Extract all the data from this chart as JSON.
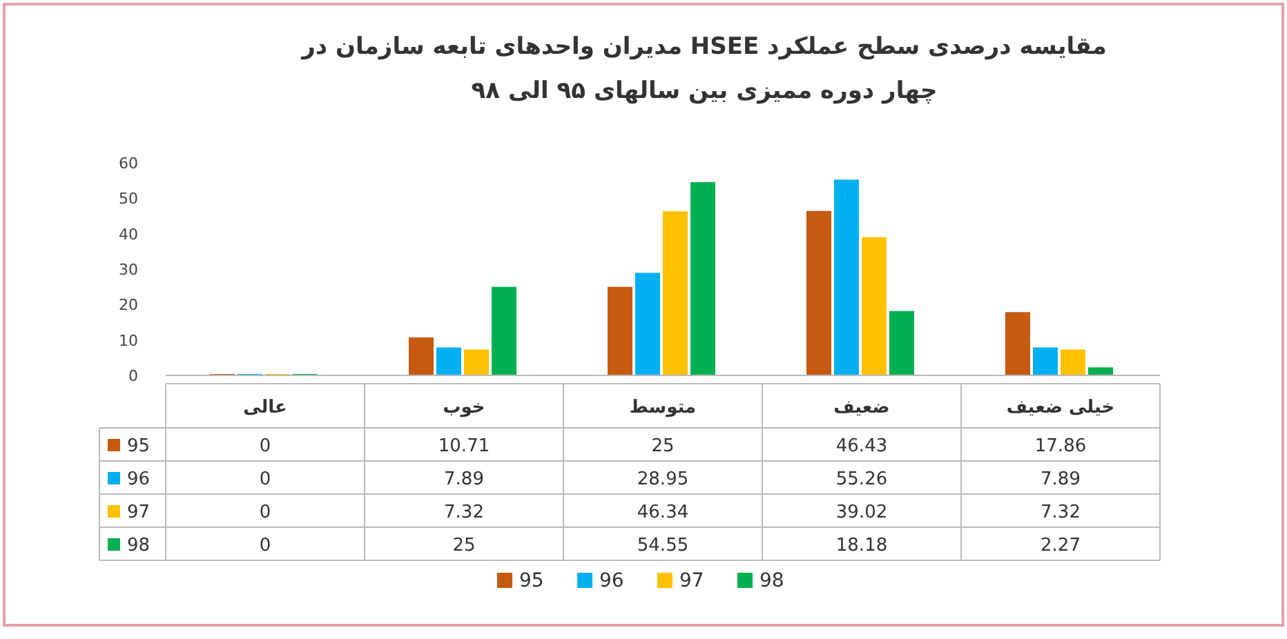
{
  "chart_data": {
    "type": "bar",
    "title": "مقایسه درصدی سطح عملکرد HSEE مدیران واحدهای تابعه سازمان در چهار دوره ممیزی بین سالهای ۹۵ الی ۹۸",
    "categories": [
      "عالی",
      "خوب",
      "متوسط",
      "ضعیف",
      "خیلی ضعیف"
    ],
    "series": [
      {
        "name": "95",
        "color": "#c55a11",
        "values": [
          0,
          10.71,
          25,
          46.43,
          17.86
        ]
      },
      {
        "name": "96",
        "color": "#00b0f0",
        "values": [
          0,
          7.89,
          28.95,
          55.26,
          7.89
        ]
      },
      {
        "name": "97",
        "color": "#ffc000",
        "values": [
          0,
          7.32,
          46.34,
          39.02,
          7.32
        ]
      },
      {
        "name": "98",
        "color": "#00b050",
        "values": [
          0,
          25,
          54.55,
          18.18,
          2.27
        ]
      }
    ],
    "ylim": [
      0,
      60
    ],
    "yticks": [
      0,
      10,
      20,
      30,
      40,
      50,
      60
    ],
    "data_labels": true,
    "legend": "bottom",
    "grid": false
  }
}
